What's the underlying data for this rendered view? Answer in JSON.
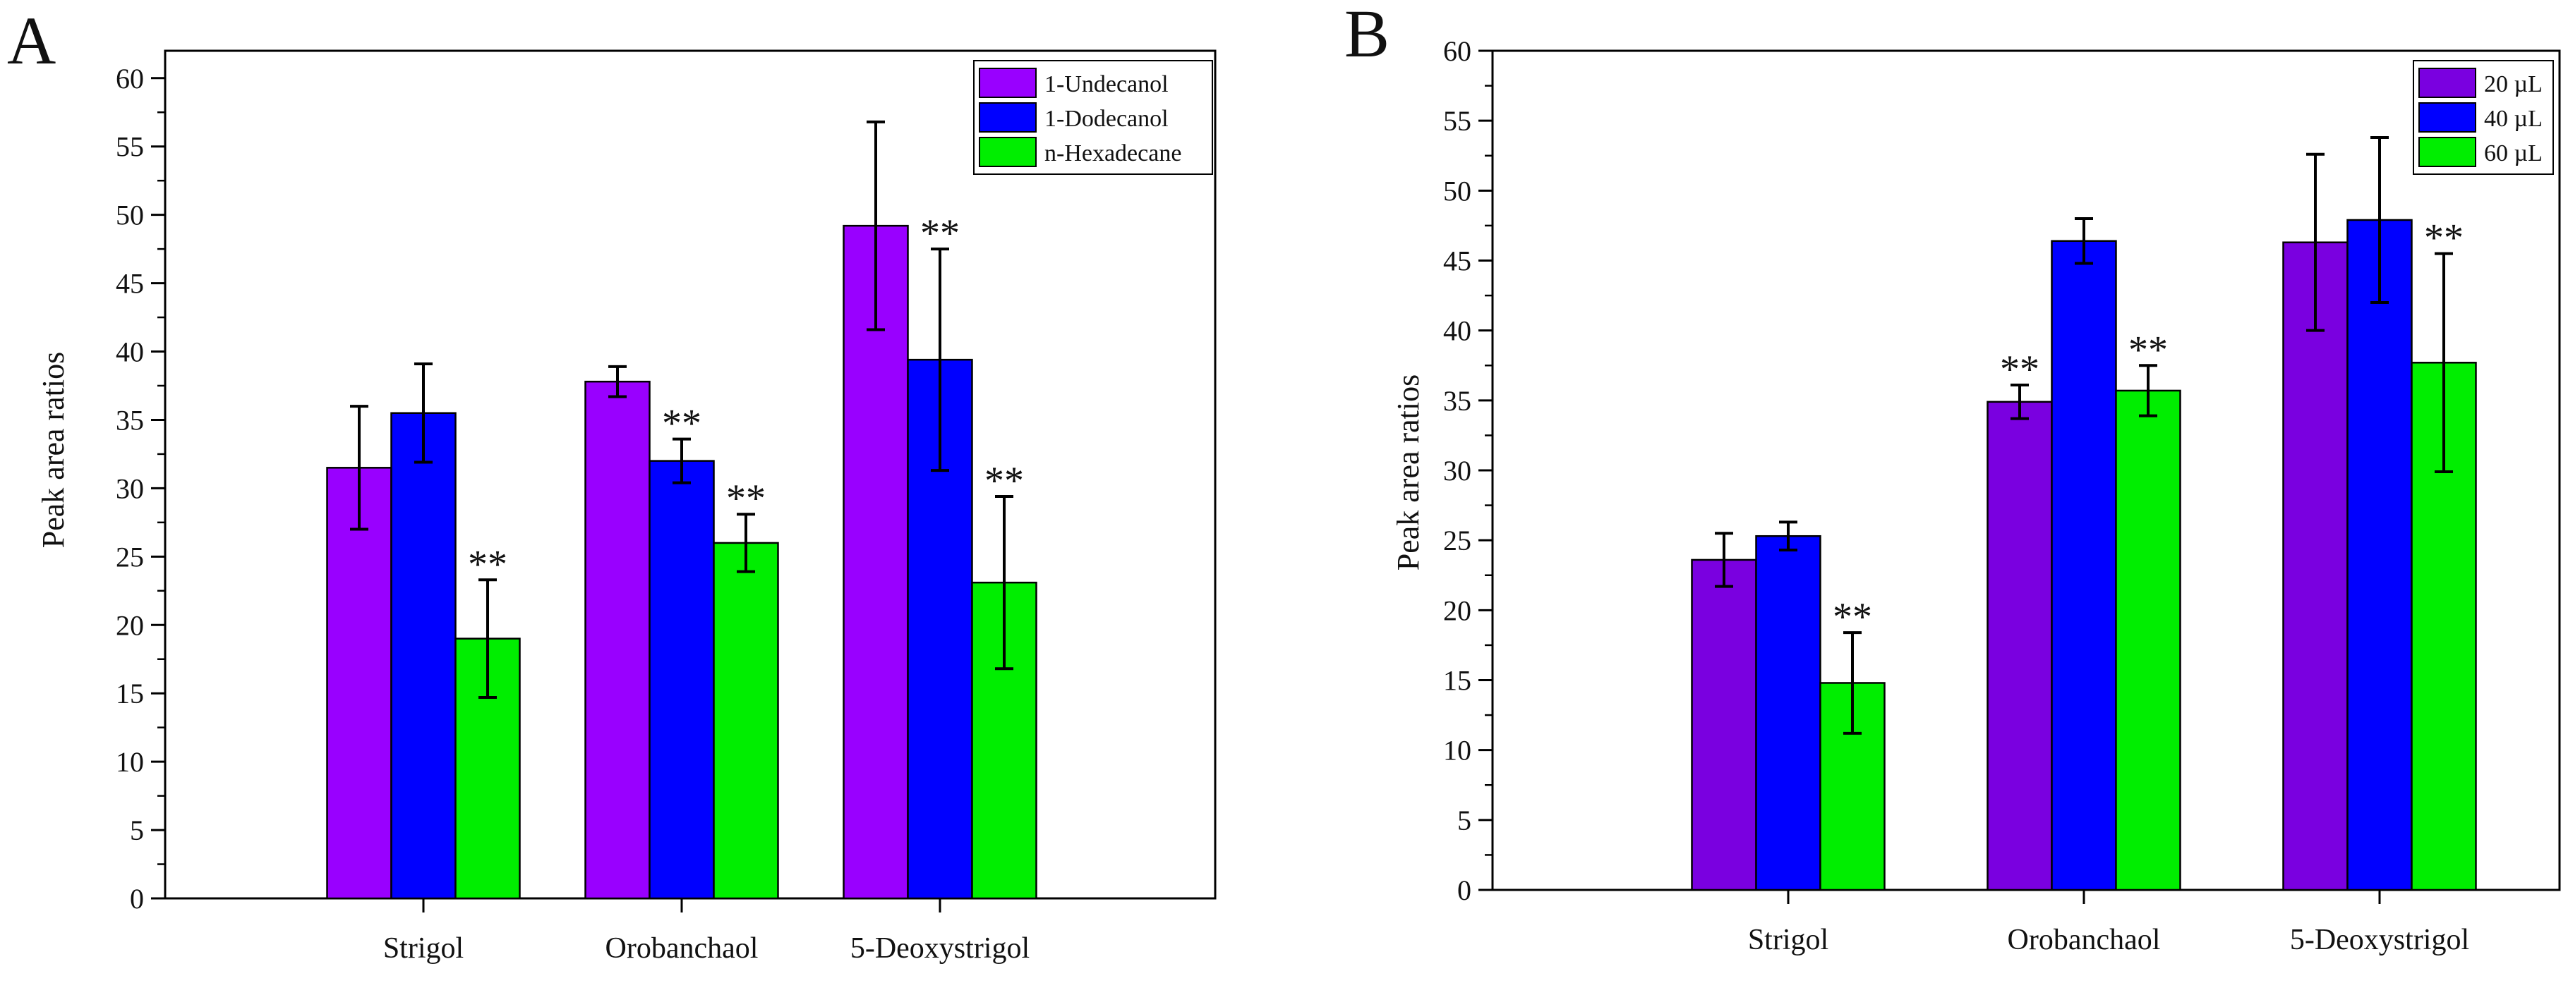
{
  "chart_data": [
    {
      "panel": "A",
      "type": "bar",
      "title": "",
      "xlabel": "",
      "ylabel": "Peak area ratios",
      "ylim": [
        0,
        62
      ],
      "yticks": [
        "0",
        "5",
        "10",
        "15",
        "20",
        "25",
        "30",
        "35",
        "40",
        "45",
        "50",
        "55",
        "60"
      ],
      "grid": false,
      "legend_position": "top-right",
      "categories": [
        "Strigol",
        "Orobanchaol",
        "5-Deoxystrigol"
      ],
      "series": [
        {
          "name": "1-Undecanol",
          "color": "#9900ff",
          "values": [
            31.5,
            37.8,
            49.2
          ],
          "errors": [
            4.5,
            1.1,
            7.6
          ],
          "significance": [
            "",
            "",
            ""
          ]
        },
        {
          "name": "1-Dodecanol",
          "color": "#0000ff",
          "values": [
            35.5,
            32.0,
            39.4
          ],
          "errors": [
            3.6,
            1.6,
            8.1
          ],
          "significance": [
            "",
            "**",
            "**"
          ]
        },
        {
          "name": "n-Hexadecane",
          "color": "#00ee00",
          "values": [
            19.0,
            26.0,
            23.1
          ],
          "errors": [
            4.3,
            2.1,
            6.3
          ],
          "significance": [
            "**",
            "**",
            "**"
          ]
        }
      ]
    },
    {
      "panel": "B",
      "type": "bar",
      "title": "",
      "xlabel": "",
      "ylabel": "Peak area ratios",
      "ylim": [
        0,
        60
      ],
      "yticks": [
        "0",
        "5",
        "10",
        "15",
        "20",
        "25",
        "30",
        "35",
        "40",
        "45",
        "50",
        "55",
        "60"
      ],
      "grid": false,
      "legend_position": "top-right",
      "categories": [
        "Strigol",
        "Orobanchaol",
        "5-Deoxystrigol"
      ],
      "series": [
        {
          "name": "20 µL",
          "color": "#7a00e0",
          "values": [
            23.6,
            34.9,
            46.3
          ],
          "errors": [
            1.9,
            1.2,
            6.3
          ],
          "significance": [
            "",
            "**",
            ""
          ]
        },
        {
          "name": "40 µL",
          "color": "#0000ff",
          "values": [
            25.3,
            46.4,
            47.9
          ],
          "errors": [
            1.0,
            1.6,
            5.9
          ],
          "significance": [
            "",
            "",
            ""
          ]
        },
        {
          "name": "60 µL",
          "color": "#00ee00",
          "values": [
            14.8,
            35.7,
            37.7
          ],
          "errors": [
            3.6,
            1.8,
            7.8
          ],
          "significance": [
            "**",
            "**",
            "**"
          ]
        }
      ]
    }
  ]
}
